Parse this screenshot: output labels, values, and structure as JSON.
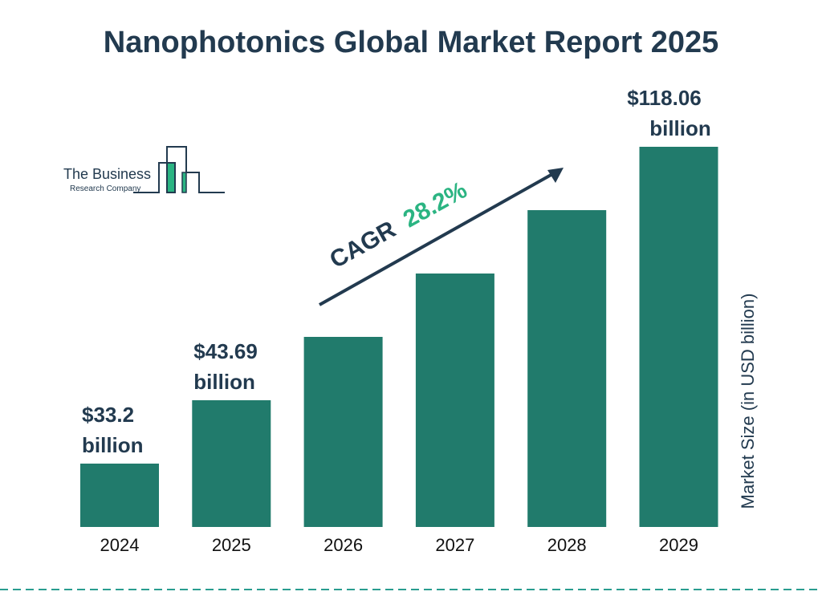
{
  "title": "Nanophotonics Global Market Report 2025",
  "logo": {
    "line1": "The Business",
    "line2": "Research Company"
  },
  "chart_data": {
    "type": "bar",
    "categories": [
      "2024",
      "2025",
      "2026",
      "2027",
      "2028",
      "2029"
    ],
    "values": [
      33.2,
      43.69,
      56.01,
      71.8,
      92.05,
      118.06
    ],
    "data_labels": [
      {
        "index": 0,
        "line1": "$33.2",
        "line2": "billion"
      },
      {
        "index": 1,
        "line1": "$43.69",
        "line2": "billion"
      },
      {
        "index": 5,
        "line1": "$118.06",
        "line2": "billion"
      }
    ],
    "ylabel": "Market Size (in USD billion)",
    "xlabel": "",
    "annotation": {
      "label": "CAGR",
      "value": "28.2%"
    },
    "grid": false,
    "colors": {
      "bar": "#217b6c",
      "text": "#223a4f",
      "accent": "#2bb482",
      "divider": "#2a9d8f"
    }
  }
}
